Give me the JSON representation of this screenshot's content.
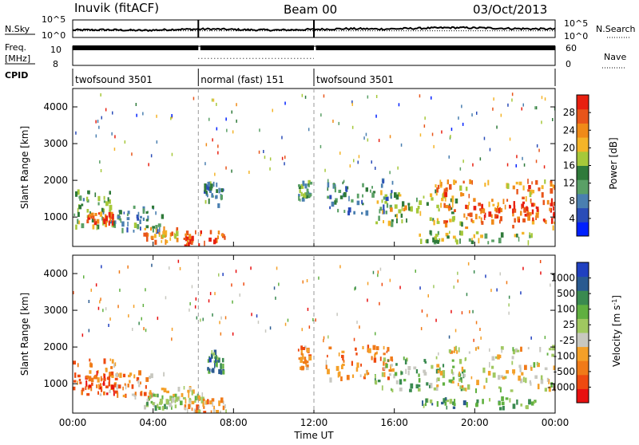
{
  "header": {
    "station": "Inuvik (fitACF)",
    "beam": "Beam 00",
    "date": "03/Oct/2013"
  },
  "chart_data": [
    {
      "type": "line",
      "panel": "noise",
      "left_label": "N.Sky",
      "right_label": "N.Search",
      "left_ticks": [
        "10^5",
        "10^0"
      ],
      "right_ticks": [
        "10^5",
        "10^0"
      ],
      "series": [
        {
          "name": "N.Sky",
          "style": "solid",
          "values_log10": [
            2.1,
            2.2,
            2.0,
            2.3,
            2.4,
            2.2,
            2.1,
            2.3,
            2.5,
            2.4,
            2.6,
            2.8,
            2.7,
            2.5,
            2.4
          ]
        },
        {
          "name": "N.Search",
          "style": "dotted",
          "values_log10": [
            1.9,
            1.9,
            1.9,
            1.9,
            1.9,
            1.9,
            1.9,
            1.9,
            1.9,
            1.9,
            1.9,
            1.9,
            1.9,
            1.9,
            1.9
          ]
        }
      ]
    },
    {
      "type": "line",
      "panel": "frequency",
      "left_label_top": "Freq.",
      "left_label_unit": "[MHz]",
      "right_label": "Nave",
      "left_ticks": [
        "10",
        "8"
      ],
      "right_ticks": [
        "60",
        "0"
      ],
      "series": [
        {
          "name": "Freq.",
          "style": "solid",
          "value": 10.3
        },
        {
          "name": "Nave",
          "style": "dotted",
          "segments": [
            [
              6.25,
              12.0,
              22
            ]
          ]
        }
      ]
    },
    {
      "type": "table",
      "panel": "cpid",
      "label": "CPID",
      "segments": [
        {
          "start": 0,
          "end": 6.25,
          "name": "twofsound 3501"
        },
        {
          "start": 6.25,
          "end": 12.0,
          "name": "normal (fast) 151"
        },
        {
          "start": 12.0,
          "end": 24,
          "name": "twofsound 3501"
        }
      ]
    },
    {
      "type": "heatmap",
      "panel": "power",
      "ylabel": "Slant Range [km]",
      "yticks": [
        1000,
        2000,
        3000,
        4000
      ],
      "ylim": [
        200,
        4500
      ],
      "xlim": [
        0,
        24
      ],
      "colorbar_label": "Power [dB]",
      "colorbar_ticks": [
        "4",
        "8",
        "12",
        "16",
        "20",
        "24",
        "28"
      ],
      "colorbar_colors": [
        "#0020ff",
        "#2a4cb8",
        "#4a7fb0",
        "#5aa066",
        "#2f7a3a",
        "#a6c83a",
        "#f4b428",
        "#f08a18",
        "#e8551a",
        "#e82010"
      ],
      "regions": [
        {
          "t0": 0.0,
          "t1": 2.2,
          "r0": 700,
          "r1": 1700,
          "level": 0.45
        },
        {
          "t0": 0.6,
          "t1": 2.0,
          "r0": 800,
          "r1": 1100,
          "level": 0.85
        },
        {
          "t0": 2.0,
          "t1": 4.5,
          "r0": 600,
          "r1": 1300,
          "level": 0.35
        },
        {
          "t0": 3.5,
          "t1": 5.2,
          "r0": 300,
          "r1": 700,
          "level": 0.7
        },
        {
          "t0": 5.5,
          "t1": 7.6,
          "r0": 200,
          "r1": 600,
          "level": 0.9
        },
        {
          "t0": 6.5,
          "t1": 7.5,
          "r0": 1300,
          "r1": 1900,
          "level": 0.35
        },
        {
          "t0": 11.2,
          "t1": 11.8,
          "r0": 1400,
          "r1": 2000,
          "level": 0.4
        },
        {
          "t0": 12.5,
          "t1": 16.0,
          "r0": 1100,
          "r1": 2000,
          "level": 0.3
        },
        {
          "t0": 15.0,
          "t1": 19.5,
          "r0": 800,
          "r1": 1700,
          "level": 0.55
        },
        {
          "t0": 18.0,
          "t1": 24.0,
          "r0": 700,
          "r1": 2000,
          "level": 0.75
        },
        {
          "t0": 19.5,
          "t1": 24.0,
          "r0": 900,
          "r1": 1500,
          "level": 0.9
        },
        {
          "t0": 17.0,
          "t1": 23.0,
          "r0": 300,
          "r1": 600,
          "level": 0.5
        }
      ]
    },
    {
      "type": "heatmap",
      "panel": "velocity",
      "ylabel": "Slant Range [km]",
      "xlabel": "Time UT",
      "yticks": [
        1000,
        2000,
        3000,
        4000
      ],
      "ylim": [
        200,
        4500
      ],
      "xlim": [
        0,
        24
      ],
      "xticks": [
        "00:00",
        "04:00",
        "08:00",
        "12:00",
        "16:00",
        "20:00",
        "00:00"
      ],
      "colorbar_label": "Velocity [m s^-1]",
      "colorbar_ticks": [
        "-1000",
        "-500",
        "-100",
        "-25",
        "25",
        "100",
        "500",
        "1000"
      ],
      "colorbar_colors": [
        "#e81010",
        "#ee4a10",
        "#f07a18",
        "#f4a028",
        "#c8c8c0",
        "#a0c860",
        "#60b040",
        "#3a8a50",
        "#2a5a90",
        "#2040c0"
      ],
      "regions": [
        {
          "t0": 0.0,
          "t1": 2.2,
          "r0": 700,
          "r1": 1700,
          "level": 0.25
        },
        {
          "t0": 0.6,
          "t1": 2.0,
          "r0": 900,
          "r1": 1300,
          "level": 0.15
        },
        {
          "t0": 2.0,
          "t1": 4.5,
          "r0": 600,
          "r1": 1300,
          "level": 0.3
        },
        {
          "t0": 3.5,
          "t1": 5.2,
          "r0": 300,
          "r1": 700,
          "level": 0.65
        },
        {
          "t0": 4.5,
          "t1": 6.5,
          "r0": 400,
          "r1": 900,
          "level": 0.48
        },
        {
          "t0": 5.5,
          "t1": 7.6,
          "r0": 200,
          "r1": 600,
          "level": 0.35
        },
        {
          "t0": 6.5,
          "t1": 7.5,
          "r0": 1300,
          "r1": 1900,
          "level": 0.75
        },
        {
          "t0": 11.2,
          "t1": 11.8,
          "r0": 1400,
          "r1": 2000,
          "level": 0.3
        },
        {
          "t0": 12.5,
          "t1": 16.0,
          "r0": 1100,
          "r1": 2000,
          "level": 0.28
        },
        {
          "t0": 15.0,
          "t1": 19.5,
          "r0": 800,
          "r1": 1700,
          "level": 0.62
        },
        {
          "t0": 18.0,
          "t1": 24.0,
          "r0": 800,
          "r1": 2000,
          "level": 0.45
        },
        {
          "t0": 17.0,
          "t1": 23.0,
          "r0": 300,
          "r1": 600,
          "level": 0.7
        }
      ]
    }
  ]
}
